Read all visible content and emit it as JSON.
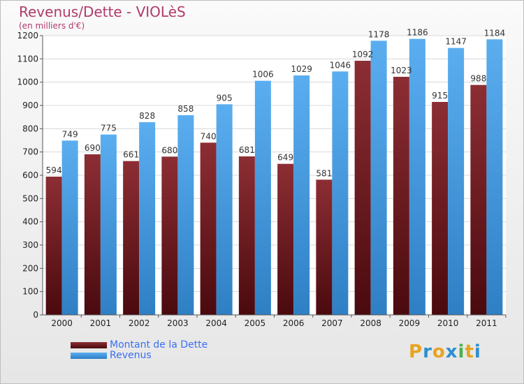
{
  "title": "Revenus/Dette - VIOLèS",
  "subtitle": "(en milliers d'€)",
  "logo": {
    "text": "Proxiti",
    "letters": [
      "P",
      "r",
      "o",
      "x",
      "i",
      "t",
      "i"
    ],
    "colors": [
      "#e8a321",
      "#2e8fd0",
      "#e8a321",
      "#2e8fd0",
      "#4caf50",
      "#e8a321",
      "#2e8fd0"
    ]
  },
  "chart_data": {
    "type": "bar",
    "categories": [
      "2000",
      "2001",
      "2002",
      "2003",
      "2004",
      "2005",
      "2006",
      "2007",
      "2008",
      "2009",
      "2010",
      "2011"
    ],
    "series": [
      {
        "name": "Montant de la Dette",
        "values": [
          594,
          690,
          661,
          680,
          740,
          681,
          649,
          581,
          1092,
          1023,
          915,
          988
        ],
        "color": "#7a2028"
      },
      {
        "name": "Revenus",
        "values": [
          749,
          775,
          828,
          858,
          905,
          1006,
          1029,
          1046,
          1178,
          1186,
          1147,
          1184
        ],
        "color": "#4aa3e6"
      }
    ],
    "ylim": [
      0,
      1200
    ],
    "yticks": [
      0,
      100,
      200,
      300,
      400,
      500,
      600,
      700,
      800,
      900,
      1000,
      1100,
      1200
    ],
    "grid": true,
    "legend": "bottom-left"
  }
}
